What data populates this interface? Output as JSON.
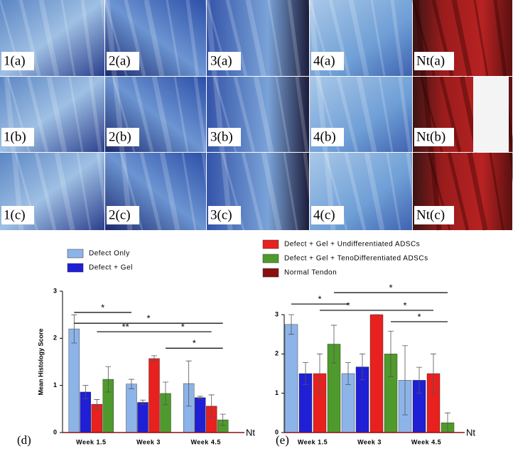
{
  "image_panels": [
    [
      "1(a)",
      "2(a)",
      "3(a)",
      "4(a)",
      "Nt(a)"
    ],
    [
      "1(b)",
      "2(b)",
      "3(b)",
      "4(b)",
      "Nt(b)"
    ],
    [
      "1(c)",
      "2(c)",
      "3(c)",
      "4(c)",
      "Nt(c)"
    ]
  ],
  "chart_data": [
    {
      "type": "bar",
      "label": "(d)",
      "y_label": "Mean Histology Score",
      "categories": [
        "Week 1.5",
        "Week 3",
        "Week 4.5"
      ],
      "series": [
        {
          "name": "Defect Only",
          "color": "#8db4e8",
          "values": [
            2.2,
            1.03,
            1.04
          ],
          "errors": [
            0.3,
            0.1,
            0.48
          ]
        },
        {
          "name": "Defect + Gel",
          "color": "#1f1fd6",
          "values": [
            0.86,
            0.64,
            0.74
          ],
          "errors": [
            0.14,
            0.05,
            0.03
          ]
        },
        {
          "name": "Defect + Gel + Undifferentiated ADSCs",
          "color": "#e8211f",
          "values": [
            0.6,
            1.57,
            0.56
          ],
          "errors": [
            0.1,
            0.06,
            0.24
          ]
        },
        {
          "name": "Defect + Gel + TenoDifferentiated ADSCs",
          "color": "#4f9a2c",
          "values": [
            1.13,
            0.83,
            0.27
          ],
          "errors": [
            0.27,
            0.24,
            0.12
          ]
        }
      ],
      "reference": {
        "name": "Normal Tendon",
        "color": "#8a1010",
        "value": 0,
        "label": "Nt"
      },
      "ylim": [
        0,
        3
      ],
      "yticks": [
        0,
        1,
        2,
        3
      ],
      "annotations": [
        {
          "label": "*",
          "y": 2.55,
          "from": [
            0,
            0
          ],
          "to": [
            1,
            0
          ]
        },
        {
          "label": "*",
          "y": 2.32,
          "from": [
            0,
            0
          ],
          "to": [
            2,
            3
          ]
        },
        {
          "label": "**",
          "y": 2.14,
          "from": [
            0,
            2
          ],
          "to": [
            1,
            2
          ]
        },
        {
          "label": "*",
          "y": 2.14,
          "from": [
            1,
            2
          ],
          "to": [
            2,
            2
          ]
        },
        {
          "label": "*",
          "y": 1.79,
          "from": [
            1,
            3
          ],
          "to": [
            2,
            3
          ]
        }
      ]
    },
    {
      "type": "bar",
      "label": "(e)",
      "categories": [
        "Week 1.5",
        "Week 3",
        "Week 4.5"
      ],
      "series": [
        {
          "color": "#8db4e8",
          "values": [
            2.75,
            1.5,
            1.33
          ],
          "errors": [
            0.25,
            0.28,
            0.88
          ]
        },
        {
          "color": "#1f1fd6",
          "values": [
            1.5,
            1.67,
            1.33
          ],
          "errors": [
            0.28,
            0.33,
            0.33
          ]
        },
        {
          "color": "#e8211f",
          "values": [
            1.5,
            3,
            1.5
          ],
          "errors": [
            0.5,
            0,
            0.5
          ]
        },
        {
          "color": "#4f9a2c",
          "values": [
            2.25,
            2,
            0.25
          ],
          "errors": [
            0.48,
            0.58,
            0.25
          ]
        }
      ],
      "reference": {
        "color": "#8a1010",
        "value": 0,
        "label": "Nt"
      },
      "ylim": [
        0,
        3
      ],
      "yticks": [
        0,
        1,
        2,
        3
      ],
      "annotations": [
        {
          "label": "*",
          "y": 3.56,
          "from": [
            0,
            3
          ],
          "to": [
            2,
            3
          ]
        },
        {
          "label": "*",
          "y": 3.27,
          "from": [
            0,
            0
          ],
          "to": [
            1,
            0
          ]
        },
        {
          "label": "*",
          "y": 3.11,
          "from": [
            0,
            2
          ],
          "to": [
            1,
            2
          ]
        },
        {
          "label": "*",
          "y": 3.11,
          "from": [
            1,
            2
          ],
          "to": [
            2,
            2
          ]
        },
        {
          "label": "*",
          "y": 2.82,
          "from": [
            1,
            3
          ],
          "to": [
            2,
            3
          ]
        }
      ]
    }
  ]
}
